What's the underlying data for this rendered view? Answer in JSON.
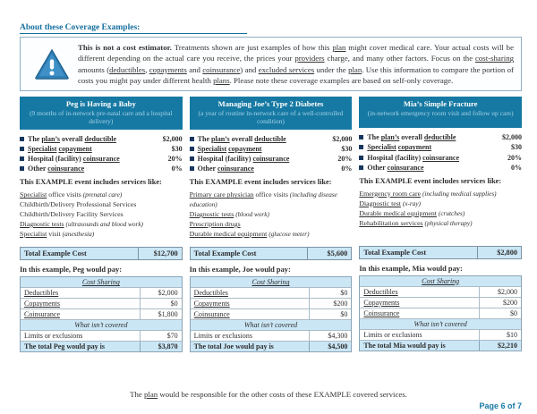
{
  "colors": {
    "accent_teal": "#1679a3",
    "light_blue_row": "#cbe6f5",
    "bullet_navy": "#17375e",
    "heading_blue": "#166f9e"
  },
  "icons": {
    "notice": "warning-triangle-icon",
    "cost_item_bullet": "bullet-square-icon"
  },
  "page": {
    "title": "About these Coverage Examples:",
    "page_number": "Page 6 of 7",
    "footer_note": [
      {
        "t": "The "
      },
      {
        "t": "plan",
        "s": "u"
      },
      {
        "t": " would be responsible for the other costs of these EXAMPLE covered services."
      }
    ]
  },
  "notice": {
    "text": [
      {
        "t": "This is not a cost estimator. ",
        "s": "b"
      },
      {
        "t": "Treatments shown are just examples of how this "
      },
      {
        "t": "plan",
        "s": "u"
      },
      {
        "t": " might cover medical care. Your actual costs will be different depending on the actual care you receive, the prices your "
      },
      {
        "t": "providers",
        "s": "u"
      },
      {
        "t": " charge, and many other factors. Focus on the "
      },
      {
        "t": "cost-sharing",
        "s": "u"
      },
      {
        "t": " amounts ("
      },
      {
        "t": "deductibles",
        "s": "u"
      },
      {
        "t": ", "
      },
      {
        "t": "copayments",
        "s": "u"
      },
      {
        "t": " and "
      },
      {
        "t": "coinsurance",
        "s": "u"
      },
      {
        "t": ") and "
      },
      {
        "t": "excluded services",
        "s": "u"
      },
      {
        "t": " under the "
      },
      {
        "t": "plan",
        "s": "u"
      },
      {
        "t": ". Use this information to compare the portion of costs you might pay under different health "
      },
      {
        "t": "plans",
        "s": "u"
      },
      {
        "t": ". Please note these coverage examples are based on self-only coverage."
      }
    ]
  },
  "columns": [
    {
      "header": {
        "title": "Peg is Having a Baby",
        "subtitle": "(9 months of in-network pre-natal care and a hospital delivery)"
      },
      "cost_items": [
        {
          "label": [
            {
              "t": "The "
            },
            {
              "t": "plan’s",
              "s": "u"
            },
            {
              "t": " overall "
            },
            {
              "t": "deductible",
              "s": "u"
            }
          ],
          "value": "$2,000"
        },
        {
          "label": [
            {
              "t": "Specialist",
              "s": "u"
            },
            {
              "t": " "
            },
            {
              "t": "copayment",
              "s": "u"
            }
          ],
          "value": "$30"
        },
        {
          "label": [
            {
              "t": "Hospital (facility) "
            },
            {
              "t": "coinsurance",
              "s": "u"
            }
          ],
          "value": "20%"
        },
        {
          "label": [
            {
              "t": "Other "
            },
            {
              "t": "coinsurance",
              "s": "u"
            }
          ],
          "value": "0%"
        }
      ],
      "includes_heading": "This EXAMPLE event includes services like:",
      "services": [
        [
          {
            "t": "Specialist",
            "s": "u"
          },
          {
            "t": " office visits "
          },
          {
            "t": "(prenatal care)",
            "s": "i"
          }
        ],
        [
          {
            "t": "Childbirth/Delivery Professional Services"
          }
        ],
        [
          {
            "t": "Childbirth/Delivery Facility Services"
          }
        ],
        [
          {
            "t": "Diagnostic tests",
            "s": "u"
          },
          {
            "t": " "
          },
          {
            "t": "(ultrasounds and blood work)",
            "s": "i"
          }
        ],
        [
          {
            "t": "Specialist",
            "s": "u"
          },
          {
            "t": " visit "
          },
          {
            "t": "(anesthesia)",
            "s": "i"
          }
        ]
      ],
      "total_cost": {
        "label": "Total Example Cost",
        "value": "$12,700"
      },
      "pay_heading": "In this example, Peg would pay:",
      "table": {
        "cost_sharing_label": "Cost Sharing",
        "rows": [
          {
            "label": "Deductibles",
            "value": "$2,000"
          },
          {
            "label": "Copayments",
            "value": "$0"
          },
          {
            "label": "Coinsurance",
            "value": "$1,800"
          }
        ],
        "not_covered_label": "What isn’t covered",
        "limits_row": {
          "label": "Limits or exclusions",
          "value": "$70"
        },
        "total_row": {
          "label": "The total Peg would pay is",
          "value": "$3,870"
        }
      }
    },
    {
      "header": {
        "title": "Managing Joe’s Type 2 Diabetes",
        "subtitle": "(a year of routine in-network care of a well-controlled condition)"
      },
      "cost_items": [
        {
          "label": [
            {
              "t": "The "
            },
            {
              "t": "plan’s",
              "s": "u"
            },
            {
              "t": " overall "
            },
            {
              "t": "deductible",
              "s": "u"
            }
          ],
          "value": "$2,000"
        },
        {
          "label": [
            {
              "t": "Specialist",
              "s": "u"
            },
            {
              "t": " "
            },
            {
              "t": "copayment",
              "s": "u"
            }
          ],
          "value": "$30"
        },
        {
          "label": [
            {
              "t": "Hospital (facility) "
            },
            {
              "t": "coinsurance",
              "s": "u"
            }
          ],
          "value": "20%"
        },
        {
          "label": [
            {
              "t": "Other "
            },
            {
              "t": "coinsurance",
              "s": "u"
            }
          ],
          "value": "0%"
        }
      ],
      "includes_heading": "This EXAMPLE event includes services like:",
      "services": [
        [
          {
            "t": "Primary care physician",
            "s": "u"
          },
          {
            "t": " office visits "
          },
          {
            "t": "(including disease education)",
            "s": "i"
          }
        ],
        [
          {
            "t": "Diagnostic tests",
            "s": "u"
          },
          {
            "t": " "
          },
          {
            "t": "(blood work)",
            "s": "i"
          }
        ],
        [
          {
            "t": "Prescription drugs",
            "s": "u"
          }
        ],
        [
          {
            "t": "Durable medical equipment",
            "s": "u"
          },
          {
            "t": " "
          },
          {
            "t": "(glucose meter)",
            "s": "i"
          }
        ]
      ],
      "total_cost": {
        "label": "Total Example Cost",
        "value": "$5,600"
      },
      "pay_heading": "In this example, Joe would pay:",
      "table": {
        "cost_sharing_label": "Cost Sharing",
        "rows": [
          {
            "label": "Deductibles",
            "value": "$0"
          },
          {
            "label": "Copayments",
            "value": "$200"
          },
          {
            "label": "Coinsurance",
            "value": "$0"
          }
        ],
        "not_covered_label": "What isn’t covered",
        "limits_row": {
          "label": "Limits or exclusions",
          "value": "$4,300"
        },
        "total_row": {
          "label": "The total Joe would pay is",
          "value": "$4,500"
        }
      }
    },
    {
      "header": {
        "title": "Mia’s Simple Fracture",
        "subtitle": "(in-network emergency room visit and follow up care)"
      },
      "cost_items": [
        {
          "label": [
            {
              "t": "The "
            },
            {
              "t": "plan’s",
              "s": "u"
            },
            {
              "t": " overall "
            },
            {
              "t": "deductible",
              "s": "u"
            }
          ],
          "value": "$2,000"
        },
        {
          "label": [
            {
              "t": "Specialist",
              "s": "u"
            },
            {
              "t": " "
            },
            {
              "t": "copayment",
              "s": "u"
            }
          ],
          "value": "$30"
        },
        {
          "label": [
            {
              "t": "Hospital (facility) "
            },
            {
              "t": "coinsurance",
              "s": "u"
            }
          ],
          "value": "20%"
        },
        {
          "label": [
            {
              "t": "Other "
            },
            {
              "t": "coinsurance",
              "s": "u"
            }
          ],
          "value": "0%"
        }
      ],
      "includes_heading": "This EXAMPLE event includes services like:",
      "services": [
        [
          {
            "t": "Emergency room care",
            "s": "u"
          },
          {
            "t": " "
          },
          {
            "t": "(including medical supplies)",
            "s": "i"
          }
        ],
        [
          {
            "t": "Diagnostic test",
            "s": "u"
          },
          {
            "t": " "
          },
          {
            "t": "(x-ray)",
            "s": "i"
          }
        ],
        [
          {
            "t": "Durable medical equipment",
            "s": "u"
          },
          {
            "t": " "
          },
          {
            "t": "(crutches)",
            "s": "i"
          }
        ],
        [
          {
            "t": "Rehabilitation services",
            "s": "u"
          },
          {
            "t": " "
          },
          {
            "t": "(physical therapy)",
            "s": "i"
          }
        ]
      ],
      "total_cost": {
        "label": "Total Example Cost",
        "value": "$2,800"
      },
      "pay_heading": "In this example, Mia would pay:",
      "table": {
        "cost_sharing_label": "Cost Sharing",
        "rows": [
          {
            "label": "Deductibles",
            "value": "$2,000"
          },
          {
            "label": "Copayments",
            "value": "$200"
          },
          {
            "label": "Coinsurance",
            "value": "$0"
          }
        ],
        "not_covered_label": "What isn’t covered",
        "limits_row": {
          "label": "Limits or exclusions",
          "value": "$10"
        },
        "total_row": {
          "label": "The total Mia would pay is",
          "value": "$2,210"
        }
      }
    }
  ]
}
